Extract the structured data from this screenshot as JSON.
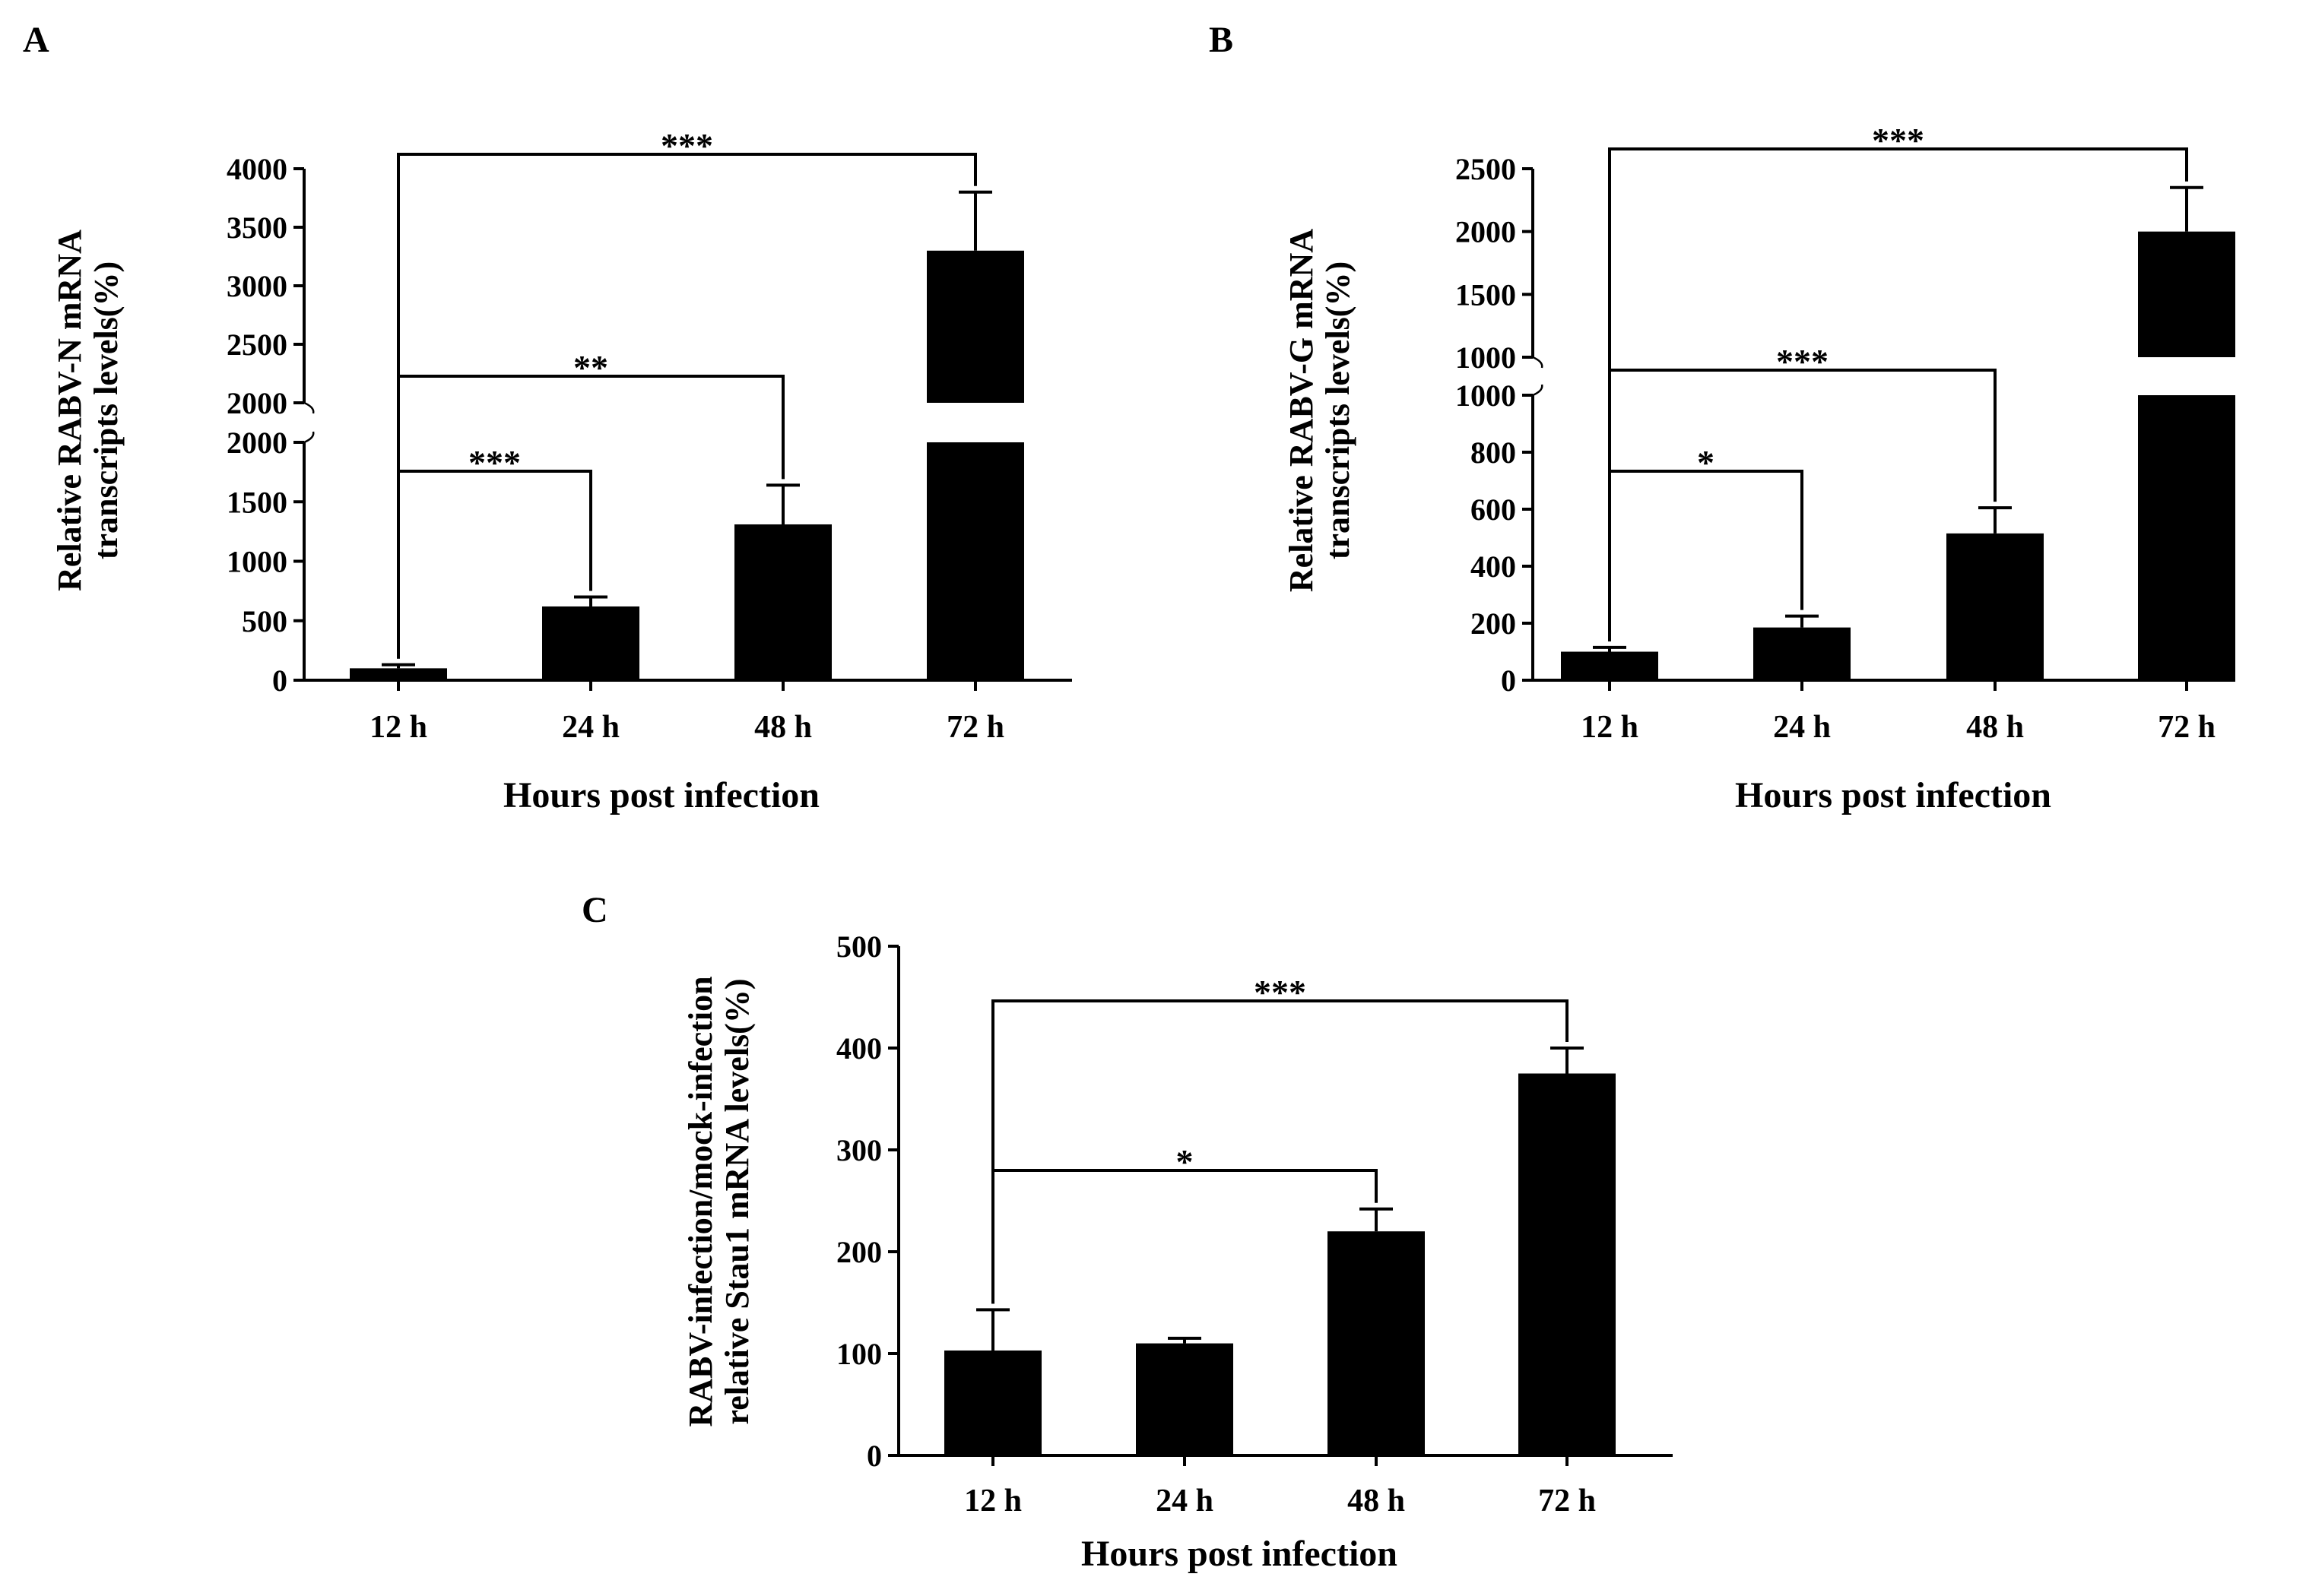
{
  "chart_data": [
    {
      "id": "A",
      "panel_label": "A",
      "type": "bar",
      "categories": [
        "12 h",
        "24 h",
        "48 h",
        "72 h"
      ],
      "values": [
        100,
        620,
        1310,
        3300
      ],
      "errors": [
        30,
        80,
        330,
        500
      ],
      "xlabel": "Hours post infection",
      "ylabel_lines": [
        "Relative RABV-N mRNA",
        "transcripts levels(%)"
      ],
      "axis_break": {
        "lower": {
          "min": 0,
          "max": 2000,
          "ticks": [
            0,
            500,
            1000,
            1500,
            2000
          ]
        },
        "upper": {
          "min": 2000,
          "max": 4000,
          "ticks": [
            2000,
            2500,
            3000,
            3500,
            4000
          ]
        }
      },
      "significance": [
        {
          "from": 0,
          "to": 3,
          "label": "***"
        },
        {
          "from": 0,
          "to": 2,
          "label": "**"
        },
        {
          "from": 0,
          "to": 1,
          "label": "***"
        }
      ]
    },
    {
      "id": "B",
      "panel_label": "B",
      "type": "bar",
      "categories": [
        "12 h",
        "24 h",
        "48 h",
        "72 h"
      ],
      "values": [
        100,
        185,
        515,
        2000
      ],
      "errors": [
        15,
        40,
        90,
        350
      ],
      "xlabel": "Hours post infection",
      "ylabel_lines": [
        "Relative RABV-G mRNA",
        "transcripts levels(%)"
      ],
      "axis_break": {
        "lower": {
          "min": 0,
          "max": 1000,
          "ticks": [
            0,
            200,
            400,
            600,
            800,
            1000
          ]
        },
        "upper": {
          "min": 1000,
          "max": 2500,
          "ticks": [
            1000,
            1500,
            2000,
            2500
          ]
        }
      },
      "significance": [
        {
          "from": 0,
          "to": 3,
          "label": "***"
        },
        {
          "from": 0,
          "to": 2,
          "label": "***"
        },
        {
          "from": 0,
          "to": 1,
          "label": "*"
        }
      ]
    },
    {
      "id": "C",
      "panel_label": "C",
      "type": "bar",
      "categories": [
        "12 h",
        "24 h",
        "48 h",
        "72 h"
      ],
      "values": [
        103,
        110,
        220,
        375
      ],
      "errors": [
        40,
        5,
        22,
        25
      ],
      "xlabel": "Hours post infection",
      "ylabel_lines": [
        "RABV-infection/mock-infection",
        "relative Stau1 mRNA levels(%)"
      ],
      "ylim": [
        0,
        500
      ],
      "yticks": [
        0,
        100,
        200,
        300,
        400,
        500
      ],
      "significance": [
        {
          "from": 0,
          "to": 3,
          "label": "***"
        },
        {
          "from": 0,
          "to": 2,
          "label": "*"
        }
      ]
    }
  ]
}
